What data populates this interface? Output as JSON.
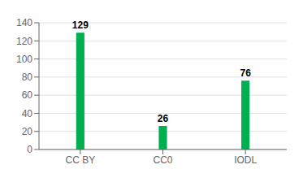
{
  "chart_data": {
    "type": "bar",
    "categories": [
      "CC BY",
      "CC0",
      "IODL"
    ],
    "values": [
      129,
      26,
      76
    ],
    "color": "#00b050",
    "ylim": [
      0,
      140
    ],
    "yticks": [
      0,
      20,
      40,
      60,
      80,
      100,
      120,
      140
    ],
    "grid": true,
    "data_labels": true
  }
}
